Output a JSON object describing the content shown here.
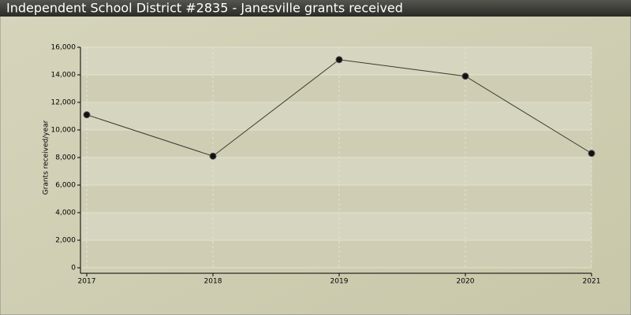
{
  "chart_data": {
    "type": "line",
    "title": "Independent School District #2835 - Janesville grants received",
    "y_label": "Grants received/year",
    "categories": [
      "2017",
      "2018",
      "2019",
      "2020",
      "2021"
    ],
    "series": [
      {
        "name": "Grants received",
        "color": "#3a3a2a",
        "values": [
          11100,
          8100,
          15100,
          13900,
          8300
        ]
      }
    ],
    "ylim": [
      0,
      16000
    ],
    "yticks": [
      0,
      {
        "value": 2000,
        "label": "2,000"
      },
      {
        "value": 4000,
        "label": "4,000"
      },
      {
        "value": 6000,
        "label": "6,000"
      },
      {
        "value": 8000,
        "label": "8,000"
      },
      {
        "value": 10000,
        "label": "10,000"
      },
      {
        "value": 12000,
        "label": "12,000"
      },
      {
        "value": 14000,
        "label": "14,000"
      },
      {
        "value": 16000,
        "label": "16,000"
      }
    ],
    "grid": true
  }
}
